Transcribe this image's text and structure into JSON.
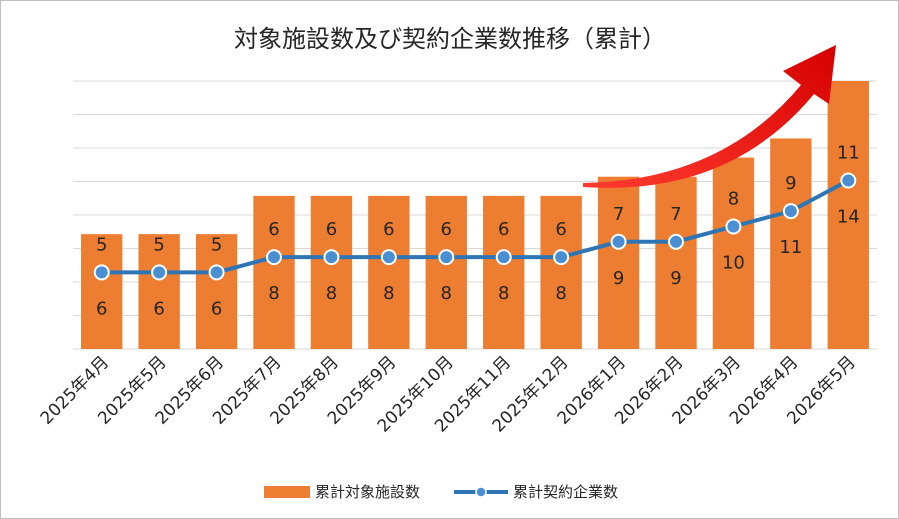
{
  "chart_data": {
    "type": "bar",
    "title": "対象施設数及び契約企業数推移（累計）",
    "categories": [
      "2025年4月",
      "2025年5月",
      "2025年6月",
      "2025年7月",
      "2025年8月",
      "2025年9月",
      "2025年10月",
      "2025年11月",
      "2025年12月",
      "2026年1月",
      "2026年2月",
      "2026年3月",
      "2026年4月",
      "2026年5月"
    ],
    "series": [
      {
        "name": "累計対象施設数",
        "type": "bar",
        "color": "#ED7D31",
        "values": [
          6,
          6,
          6,
          8,
          8,
          8,
          8,
          8,
          8,
          9,
          9,
          10,
          11,
          14
        ]
      },
      {
        "name": "累計契約企業数",
        "type": "line",
        "color": "#2E75B6",
        "values": [
          5,
          5,
          5,
          6,
          6,
          6,
          6,
          6,
          6,
          7,
          7,
          8,
          9,
          11
        ]
      }
    ],
    "bar_ylim": [
      0,
      14
    ],
    "line_ylim": [
      0,
      17.5
    ],
    "gridlines": true,
    "legend_position": "bottom",
    "annotation": "red upward trend arrow"
  }
}
